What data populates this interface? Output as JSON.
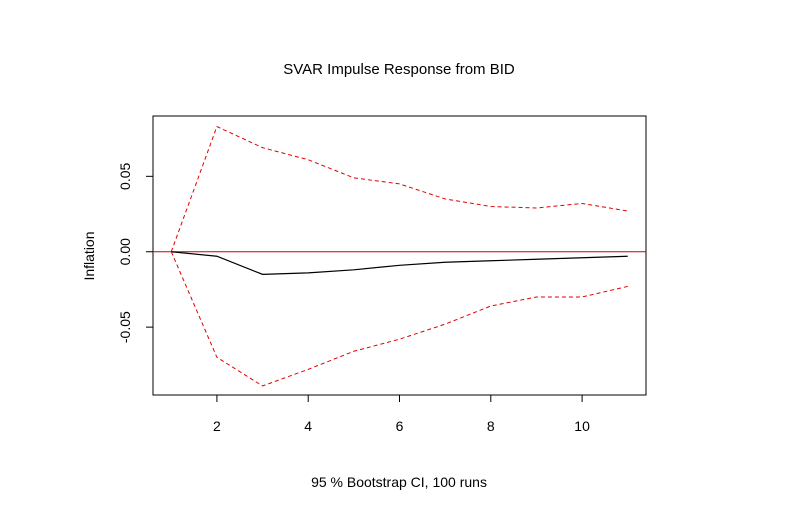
{
  "chart_data": {
    "type": "line",
    "title": "SVAR Impulse Response from BID",
    "xlabel": "95 % Bootstrap CI,  100 runs",
    "ylabel": "Inflation",
    "x": [
      1,
      2,
      3,
      4,
      5,
      6,
      7,
      8,
      9,
      10,
      11
    ],
    "xlim": [
      0.6,
      11.4
    ],
    "ylim": [
      -0.095,
      0.09
    ],
    "x_ticks": [
      2,
      4,
      6,
      8,
      10
    ],
    "x_tick_labels": [
      "2",
      "4",
      "6",
      "8",
      "10"
    ],
    "y_ticks": [
      0.05,
      0.0,
      -0.05
    ],
    "y_tick_labels": [
      "0.05",
      "0.00",
      "-0.05"
    ],
    "zero_line": {
      "value": 0.0,
      "color": "#cc0000"
    },
    "grid": false,
    "legend": "none",
    "series": [
      {
        "role": "impulse-response",
        "style": "solid",
        "color": "#000000",
        "values": [
          0.0,
          -0.003,
          -0.015,
          -0.014,
          -0.012,
          -0.009,
          -0.007,
          -0.006,
          -0.005,
          -0.004,
          -0.003
        ]
      },
      {
        "role": "ci-upper",
        "style": "dashed",
        "color": "#e00000",
        "values": [
          0.0,
          0.083,
          0.069,
          0.061,
          0.049,
          0.045,
          0.035,
          0.03,
          0.029,
          0.032,
          0.027
        ]
      },
      {
        "role": "ci-lower",
        "style": "dashed",
        "color": "#e00000",
        "values": [
          0.0,
          -0.07,
          -0.089,
          -0.078,
          -0.066,
          -0.058,
          -0.048,
          -0.036,
          -0.03,
          -0.03,
          -0.023
        ]
      }
    ]
  }
}
